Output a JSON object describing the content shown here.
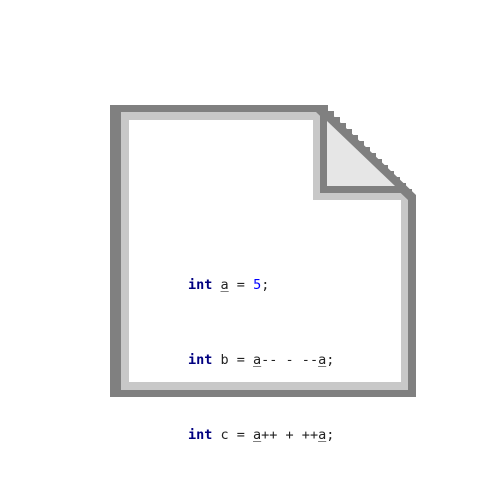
{
  "icon": {
    "name": "document-icon",
    "colors": {
      "outer_border": "#808080",
      "inner_border": "#c8c8c8",
      "page": "#ffffff",
      "fold": "#e6e6e6"
    }
  },
  "code": {
    "lines": [
      {
        "tokens": [
          {
            "text": "int",
            "kind": "keyword"
          },
          {
            "text": " ",
            "kind": "plain"
          },
          {
            "text": "a",
            "kind": "variable"
          },
          {
            "text": " = ",
            "kind": "plain"
          },
          {
            "text": "5",
            "kind": "number"
          },
          {
            "text": ";",
            "kind": "plain"
          }
        ]
      },
      {
        "tokens": [
          {
            "text": "int",
            "kind": "keyword"
          },
          {
            "text": " b = ",
            "kind": "plain"
          },
          {
            "text": "a",
            "kind": "variable"
          },
          {
            "text": "-- - --",
            "kind": "plain"
          },
          {
            "text": "a",
            "kind": "variable"
          },
          {
            "text": ";",
            "kind": "plain"
          }
        ]
      },
      {
        "tokens": [
          {
            "text": "int",
            "kind": "keyword"
          },
          {
            "text": " c = ",
            "kind": "plain"
          },
          {
            "text": "a",
            "kind": "variable"
          },
          {
            "text": "++ + ++",
            "kind": "plain"
          },
          {
            "text": "a",
            "kind": "variable"
          },
          {
            "text": ";",
            "kind": "plain"
          }
        ]
      }
    ]
  }
}
